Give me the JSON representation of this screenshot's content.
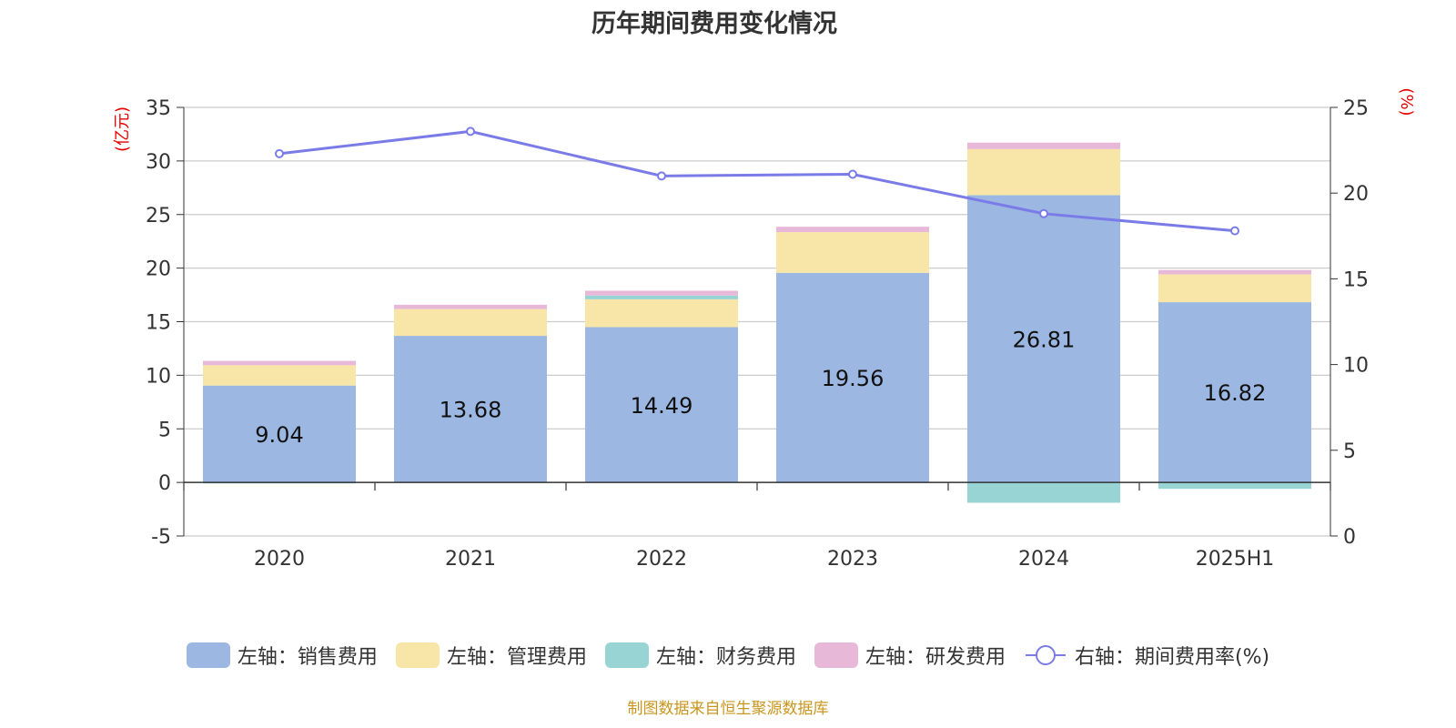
{
  "chart_data": {
    "type": "bar",
    "title": "历年期间费用变化情况",
    "categories": [
      "2020",
      "2021",
      "2022",
      "2023",
      "2024",
      "2025H1"
    ],
    "left_axis": {
      "unit_label": "(亿元)",
      "ylim": [
        -5,
        35
      ],
      "ticks": [
        35,
        30,
        25,
        20,
        15,
        10,
        5,
        0,
        -5
      ]
    },
    "right_axis": {
      "unit_label": "(%)",
      "ylim": [
        0,
        25
      ],
      "ticks": [
        25,
        20,
        15,
        10,
        5,
        0
      ]
    },
    "series": [
      {
        "name": "左轴：销售费用",
        "axis": "left",
        "stacked": true,
        "color": "#9cb8e2",
        "values": [
          9.04,
          13.68,
          14.49,
          19.56,
          26.81,
          16.82
        ],
        "data_labels": [
          "9.04",
          "13.68",
          "14.49",
          "19.56",
          "26.81",
          "16.82"
        ]
      },
      {
        "name": "左轴：管理费用",
        "axis": "left",
        "stacked": true,
        "color": "#f8e6a8",
        "values": [
          1.9,
          2.5,
          2.6,
          3.8,
          4.3,
          2.6
        ]
      },
      {
        "name": "左轴：财务费用",
        "axis": "left",
        "stacked": true,
        "color": "#98d4d4",
        "values": [
          -0.1,
          -0.05,
          0.35,
          -0.05,
          -1.9,
          -0.6
        ]
      },
      {
        "name": "左轴：研发费用",
        "axis": "left",
        "stacked": true,
        "color": "#e8b8d8",
        "values": [
          0.4,
          0.4,
          0.45,
          0.5,
          0.6,
          0.4
        ]
      },
      {
        "name": "右轴：期间费用率(%)",
        "axis": "right",
        "type": "line",
        "color": "#7b7be8",
        "values": [
          22.3,
          23.6,
          21.0,
          21.1,
          18.8,
          17.8
        ]
      }
    ],
    "grid": true,
    "legend_position": "bottom"
  },
  "source_note": "制图数据来自恒生聚源数据库"
}
